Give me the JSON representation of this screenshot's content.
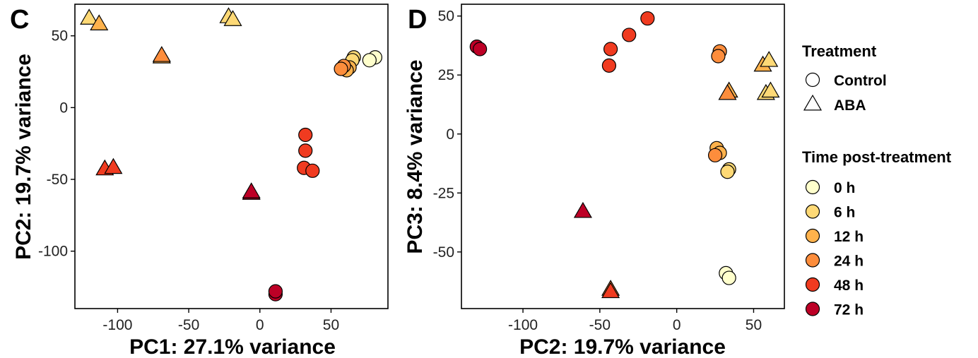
{
  "chart_data": [
    {
      "panel": "C",
      "type": "scatter",
      "xlabel": "PC1: 27.1% variance",
      "ylabel": "PC2: 19.7% variance",
      "xlim": [
        -130,
        90
      ],
      "ylim": [
        -140,
        72
      ],
      "xticks": [
        -100,
        -50,
        0,
        50
      ],
      "yticks": [
        50,
        0,
        -50,
        -100
      ],
      "grid": false,
      "points": [
        {
          "x": 81,
          "y": 35,
          "treatment": "Control",
          "time": "0 h"
        },
        {
          "x": 77,
          "y": 33,
          "treatment": "Control",
          "time": "0 h"
        },
        {
          "x": 66,
          "y": 35,
          "treatment": "Control",
          "time": "6 h"
        },
        {
          "x": 65,
          "y": 33,
          "treatment": "Control",
          "time": "6 h"
        },
        {
          "x": 63,
          "y": 28,
          "treatment": "Control",
          "time": "12 h"
        },
        {
          "x": 61,
          "y": 26,
          "treatment": "Control",
          "time": "12 h"
        },
        {
          "x": 59,
          "y": 29,
          "treatment": "Control",
          "time": "24 h"
        },
        {
          "x": 57,
          "y": 27,
          "treatment": "Control",
          "time": "24 h"
        },
        {
          "x": 32,
          "y": -19,
          "treatment": "Control",
          "time": "48 h"
        },
        {
          "x": 32,
          "y": -30,
          "treatment": "Control",
          "time": "48 h"
        },
        {
          "x": 31,
          "y": -42,
          "treatment": "Control",
          "time": "48 h"
        },
        {
          "x": 37,
          "y": -44,
          "treatment": "Control",
          "time": "48 h"
        },
        {
          "x": 11,
          "y": -130,
          "treatment": "Control",
          "time": "72 h"
        },
        {
          "x": 11,
          "y": -128,
          "treatment": "Control",
          "time": "72 h"
        },
        {
          "x": -120,
          "y": 62,
          "treatment": "ABA",
          "time": "6 h"
        },
        {
          "x": -113,
          "y": 58,
          "treatment": "ABA",
          "time": "12 h"
        },
        {
          "x": -22,
          "y": 63,
          "treatment": "ABA",
          "time": "6 h"
        },
        {
          "x": -19,
          "y": 61,
          "treatment": "ABA",
          "time": "6 h"
        },
        {
          "x": -69,
          "y": 35,
          "treatment": "ABA",
          "time": "12 h"
        },
        {
          "x": -69,
          "y": 36,
          "treatment": "ABA",
          "time": "24 h"
        },
        {
          "x": -109,
          "y": -43,
          "treatment": "ABA",
          "time": "48 h"
        },
        {
          "x": -103,
          "y": -42,
          "treatment": "ABA",
          "time": "48 h"
        },
        {
          "x": -6,
          "y": -60,
          "treatment": "ABA",
          "time": "72 h"
        },
        {
          "x": -6,
          "y": -59,
          "treatment": "ABA",
          "time": "72 h"
        }
      ]
    },
    {
      "panel": "D",
      "type": "scatter",
      "xlabel": "PC2: 19.7% variance",
      "ylabel": "PC3: 8.4% variance",
      "xlim": [
        -140,
        70
      ],
      "ylim": [
        -74,
        55
      ],
      "xticks": [
        -100,
        -50,
        0,
        50
      ],
      "yticks": [
        50,
        25,
        0,
        -25,
        -50
      ],
      "grid": false,
      "points": [
        {
          "x": -130,
          "y": 37,
          "treatment": "Control",
          "time": "72 h"
        },
        {
          "x": -128,
          "y": 36,
          "treatment": "Control",
          "time": "72 h"
        },
        {
          "x": -19,
          "y": 49,
          "treatment": "Control",
          "time": "48 h"
        },
        {
          "x": -31,
          "y": 42,
          "treatment": "Control",
          "time": "48 h"
        },
        {
          "x": -43,
          "y": 36,
          "treatment": "Control",
          "time": "48 h"
        },
        {
          "x": -44,
          "y": 29,
          "treatment": "Control",
          "time": "48 h"
        },
        {
          "x": 28,
          "y": 35,
          "treatment": "Control",
          "time": "24 h"
        },
        {
          "x": 27,
          "y": 33,
          "treatment": "Control",
          "time": "24 h"
        },
        {
          "x": 26,
          "y": -6,
          "treatment": "Control",
          "time": "12 h"
        },
        {
          "x": 28,
          "y": -8,
          "treatment": "Control",
          "time": "12 h"
        },
        {
          "x": 25,
          "y": -9,
          "treatment": "Control",
          "time": "24 h"
        },
        {
          "x": 34,
          "y": -15,
          "treatment": "Control",
          "time": "6 h"
        },
        {
          "x": 33,
          "y": -16,
          "treatment": "Control",
          "time": "6 h"
        },
        {
          "x": 32,
          "y": -59,
          "treatment": "Control",
          "time": "0 h"
        },
        {
          "x": 34,
          "y": -61,
          "treatment": "Control",
          "time": "0 h"
        },
        {
          "x": 56,
          "y": 29,
          "treatment": "ABA",
          "time": "12 h"
        },
        {
          "x": 60,
          "y": 31,
          "treatment": "ABA",
          "time": "6 h"
        },
        {
          "x": 34,
          "y": 18,
          "treatment": "ABA",
          "time": "12 h"
        },
        {
          "x": 33,
          "y": 17,
          "treatment": "ABA",
          "time": "24 h"
        },
        {
          "x": 58,
          "y": 17,
          "treatment": "ABA",
          "time": "6 h"
        },
        {
          "x": 61,
          "y": 18,
          "treatment": "ABA",
          "time": "6 h"
        },
        {
          "x": -61,
          "y": -33,
          "treatment": "ABA",
          "time": "72 h"
        },
        {
          "x": -43,
          "y": -66,
          "treatment": "ABA",
          "time": "24 h"
        },
        {
          "x": -43,
          "y": -67,
          "treatment": "ABA",
          "time": "48 h"
        }
      ]
    }
  ],
  "legend": {
    "treatment_title": "Treatment",
    "treatment_items": [
      {
        "label": "Control",
        "shape": "circle"
      },
      {
        "label": "ABA",
        "shape": "triangle"
      }
    ],
    "time_title": "Time post-treatment",
    "time_items": [
      {
        "label": "0 h",
        "color": "#ffffcc"
      },
      {
        "label": "6 h",
        "color": "#fed976"
      },
      {
        "label": "12 h",
        "color": "#feb24c"
      },
      {
        "label": "24 h",
        "color": "#fd8d3c"
      },
      {
        "label": "48 h",
        "color": "#f03b20"
      },
      {
        "label": "72 h",
        "color": "#bd0026"
      }
    ]
  }
}
